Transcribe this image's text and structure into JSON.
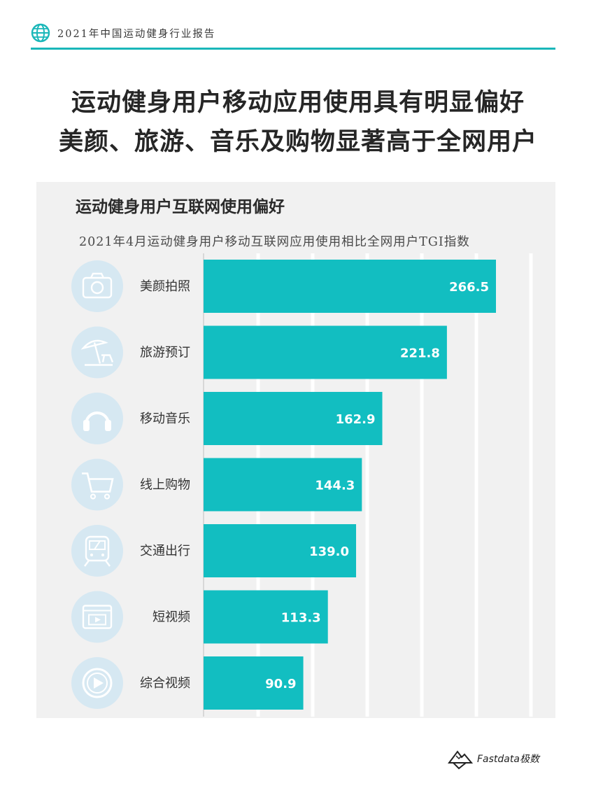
{
  "header": {
    "title": "2021年中国运动健身行业报告",
    "colors": {
      "accent": "#1ab7b9"
    }
  },
  "headline": {
    "line1": "运动健身用户移动应用使用具有明显偏好",
    "line2": "美颜、旅游、音乐及购物显著高于全网用户"
  },
  "panel": {
    "title": "运动健身用户互联网使用偏好",
    "subtitle": "2021年4月运动健身用户移动互联网应用使用相比全网用户TGI指数"
  },
  "chart_data": {
    "type": "bar",
    "orientation": "horizontal",
    "title": "运动健身用户互联网使用偏好",
    "subtitle": "2021年4月运动健身用户移动互联网应用使用相比全网用户TGI指数",
    "categories": [
      "美颜拍照",
      "旅游预订",
      "移动音乐",
      "线上购物",
      "交通出行",
      "短视频",
      "综合视频"
    ],
    "icons": [
      "camera-icon",
      "beach-umbrella-icon",
      "headphones-icon",
      "shopping-cart-icon",
      "train-icon",
      "video-player-icon",
      "play-button-icon"
    ],
    "values": [
      266.5,
      221.8,
      162.9,
      144.3,
      139.0,
      113.3,
      90.9
    ],
    "value_labels": [
      "266.5",
      "221.8",
      "162.9",
      "144.3",
      "139.0",
      "113.3",
      "90.9"
    ],
    "xlim": [
      0,
      300
    ],
    "grid": true,
    "legend": "none",
    "colors": {
      "bar": "#12bec1",
      "icon_circle": "#d6e8f2",
      "icon_stroke": "#ffffff",
      "grid": "#ffffff"
    }
  },
  "footer": {
    "brand": "Fastdata极数"
  }
}
